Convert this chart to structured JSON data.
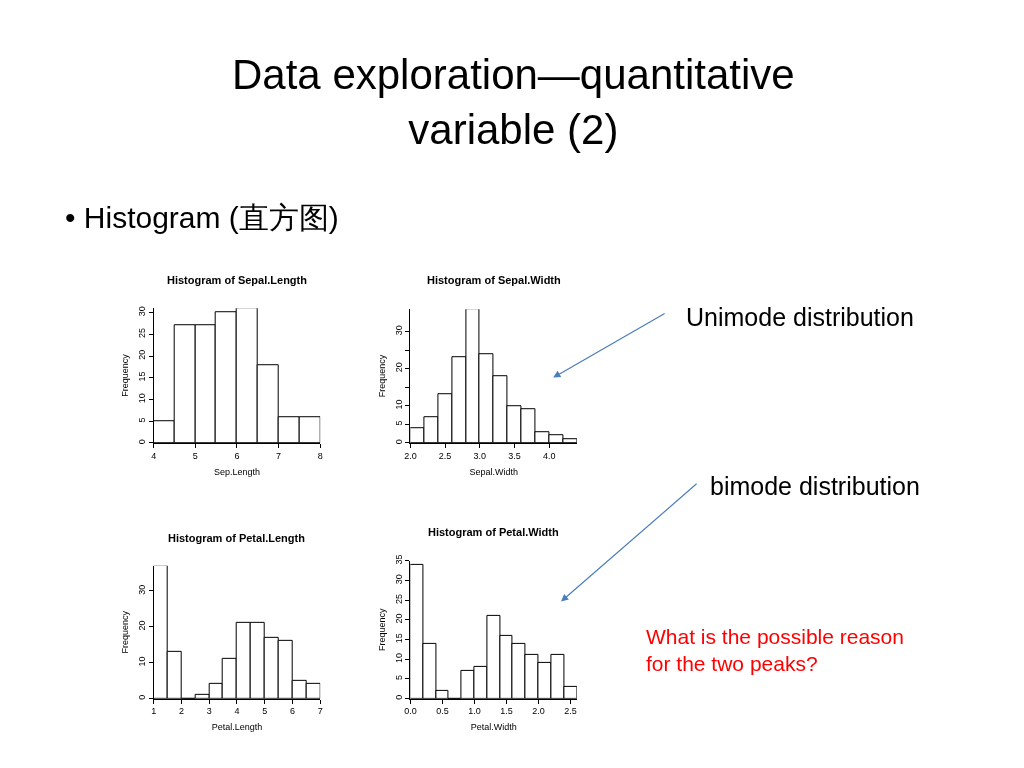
{
  "chart_data": [
    {
      "type": "other",
      "title": "Data exploration—quantitative variable (2)",
      "subtitle": "• Histogram (直方图)",
      "annotations": [
        "Unimode distribution",
        "bimode distribution",
        "What is the possible reason\nfor the two peaks?"
      ]
    },
    {
      "type": "histogram",
      "title": "Histogram of Sepal.Length",
      "xlabel": "Sep.Length",
      "ylabel": "Frequency",
      "color": "#ffffff",
      "bins": [
        4,
        4.5,
        5,
        5.5,
        6,
        6.5,
        7,
        7.5,
        8
      ],
      "values": [
        5,
        27,
        27,
        30,
        31,
        18,
        6,
        6
      ],
      "xlim": [
        4,
        8
      ],
      "xticks": [
        4,
        5,
        6,
        7,
        8
      ],
      "ylim": [
        0,
        31
      ],
      "yticks": [
        0,
        5,
        10,
        15,
        20,
        25,
        30
      ]
    },
    {
      "type": "histogram",
      "title": "Histogram of Sepal.Width",
      "xlabel": "Sepal.Width",
      "ylabel": "Frequency",
      "color": "#ffffff",
      "bins": [
        2.0,
        2.2,
        2.4,
        2.6,
        2.8,
        3.0,
        3.2,
        3.4,
        3.6,
        3.8,
        4.0,
        4.2,
        4.4
      ],
      "values": [
        4,
        7,
        13,
        23,
        36,
        24,
        18,
        10,
        9,
        3,
        2,
        1
      ],
      "xlim": [
        2.0,
        4.4
      ],
      "xticks": [
        {
          "value": 2.0,
          "label": "2.0"
        },
        2.5,
        {
          "value": 3.0,
          "label": "3.0"
        },
        3.5,
        {
          "value": 4.0,
          "label": "4.0"
        }
      ],
      "ylim": [
        0,
        36
      ],
      "yticks": [
        0,
        5,
        10,
        {
          "value": 15,
          "label": null
        },
        20,
        {
          "value": 25,
          "label": null
        },
        30
      ]
    },
    {
      "type": "histogram",
      "title": "Histogram of Petal.Length",
      "xlabel": "Petal.Length",
      "ylabel": "Frequency",
      "color": "#ffffff",
      "bins": [
        1,
        1.5,
        2,
        2.5,
        3,
        3.5,
        4,
        4.5,
        5,
        5.5,
        6,
        6.5,
        7
      ],
      "values": [
        37,
        13,
        0,
        1,
        4,
        11,
        21,
        21,
        17,
        16,
        5,
        4
      ],
      "xlim": [
        1,
        7
      ],
      "xticks": [
        1,
        2,
        3,
        4,
        5,
        6,
        7
      ],
      "ylim": [
        0,
        37
      ],
      "yticks": [
        0,
        10,
        20,
        30
      ]
    },
    {
      "type": "histogram",
      "title": "Histogram of Petal.Width",
      "xlabel": "Petal.Width",
      "ylabel": "Frequency",
      "color": "#ffffff",
      "bins": [
        0,
        0.2,
        0.4,
        0.6,
        0.8,
        1.0,
        1.2,
        1.4,
        1.6,
        1.8,
        2.0,
        2.2,
        2.4,
        2.6
      ],
      "values": [
        34,
        14,
        2,
        0,
        7,
        8,
        21,
        16,
        14,
        11,
        9,
        11,
        3
      ],
      "xlim": [
        0,
        2.6
      ],
      "xticks": [
        {
          "value": 0,
          "label": "0.0"
        },
        0.5,
        {
          "value": 1.0,
          "label": "1.0"
        },
        1.5,
        {
          "value": 2.0,
          "label": "2.0"
        },
        2.5
      ],
      "ylim": [
        0,
        35
      ],
      "yticks": [
        0,
        5,
        10,
        15,
        20,
        25,
        30,
        35
      ]
    }
  ]
}
